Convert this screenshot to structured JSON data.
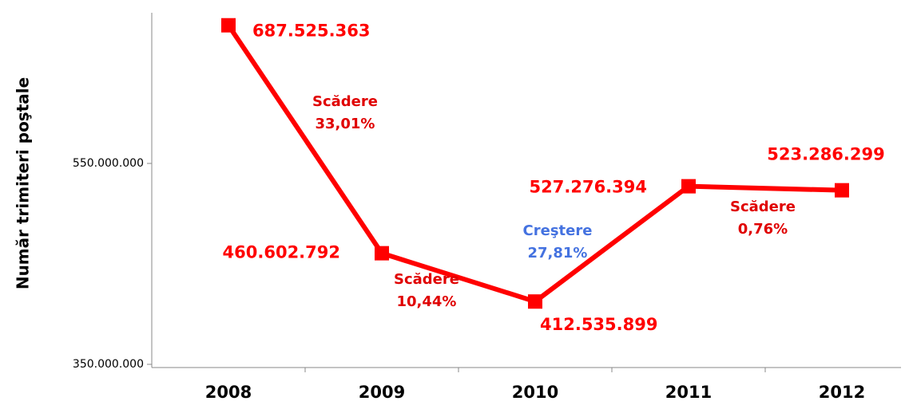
{
  "chart_data": {
    "type": "line",
    "y_axis_label": "Număr trimiteri poştale",
    "categories": [
      "2008",
      "2009",
      "2010",
      "2011",
      "2012"
    ],
    "series": [
      {
        "name": null,
        "color": "#ff0000",
        "values": [
          687525363,
          460602792,
          412535899,
          527276394,
          523286299
        ],
        "value_labels": [
          "687.525.363",
          "460.602.792",
          "412.535.899",
          "527.276.394",
          "523.286.299"
        ]
      }
    ],
    "ylim": [
      350000000,
      700000000
    ],
    "yticks": [
      {
        "value": 350000000,
        "label": "350.000.000"
      },
      {
        "value": 550000000,
        "label": "550.000.000"
      }
    ],
    "grid": false,
    "annotations": [
      {
        "lines": [
          "Scădere",
          "33,01%"
        ],
        "color": "#e00000"
      },
      {
        "lines": [
          "Scădere",
          "10,44%"
        ],
        "color": "#e00000"
      },
      {
        "lines": [
          "Creştere",
          "27,81%"
        ],
        "color": "#4472e0"
      },
      {
        "lines": [
          "Scădere",
          "0,76%"
        ],
        "color": "#e00000"
      }
    ]
  }
}
